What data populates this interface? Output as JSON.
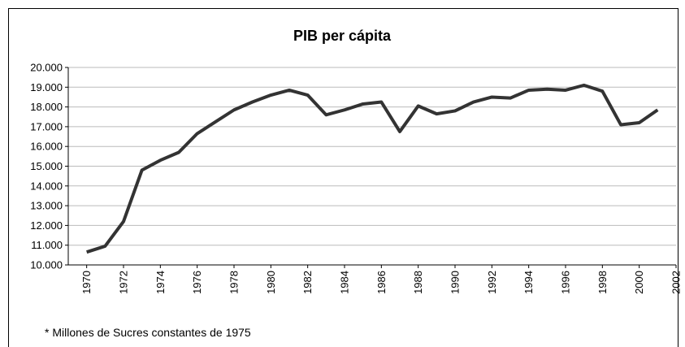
{
  "chart_data": {
    "type": "line",
    "title": "PIB per cápita",
    "note": "* Millones de Sucres constantes de 1975",
    "x": [
      1970,
      1971,
      1972,
      1973,
      1974,
      1975,
      1976,
      1977,
      1978,
      1979,
      1980,
      1981,
      1982,
      1983,
      1984,
      1985,
      1986,
      1987,
      1988,
      1989,
      1990,
      1991,
      1992,
      1993,
      1994,
      1995,
      1996,
      1997,
      1998,
      1999,
      2000,
      2001
    ],
    "series": [
      {
        "name": "PIB per cápita",
        "color": "#333333",
        "values": [
          10650,
          10950,
          12200,
          14800,
          15300,
          15700,
          16650,
          17250,
          17850,
          18250,
          18600,
          18850,
          18600,
          17600,
          17850,
          18150,
          18250,
          16750,
          18050,
          17650,
          17800,
          18250,
          18500,
          18450,
          18850,
          18900,
          18850,
          19100,
          18800,
          17100,
          17200,
          17850
        ]
      }
    ],
    "xlim": [
      1969,
      2002
    ],
    "xticks": [
      1970,
      1972,
      1974,
      1976,
      1978,
      1980,
      1982,
      1984,
      1986,
      1988,
      1990,
      1992,
      1994,
      1996,
      1998,
      2000,
      2002
    ],
    "ylim": [
      10000,
      20000
    ],
    "yticks": [
      {
        "value": 10000,
        "label": "10.000"
      },
      {
        "value": 11000,
        "label": "11.000"
      },
      {
        "value": 12000,
        "label": "12.000"
      },
      {
        "value": 13000,
        "label": "13.000"
      },
      {
        "value": 14000,
        "label": "14.000"
      },
      {
        "value": 15000,
        "label": "15.000"
      },
      {
        "value": 16000,
        "label": "16.000"
      },
      {
        "value": 17000,
        "label": "17.000"
      },
      {
        "value": 18000,
        "label": "18.000"
      },
      {
        "value": 19000,
        "label": "19.000"
      },
      {
        "value": 20000,
        "label": "20.000"
      }
    ],
    "grid": true
  }
}
